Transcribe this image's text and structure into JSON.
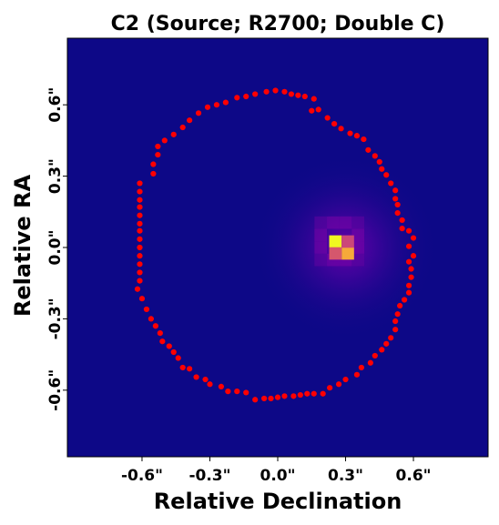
{
  "chart_data": {
    "type": "heatmap",
    "title": "C2 (Source; R2700; Double C)",
    "xlabel": "Relative Declination",
    "ylabel": "Relative RA",
    "xlim": [
      -0.93,
      0.93
    ],
    "ylim": [
      -0.88,
      0.88
    ],
    "x_ticks": [
      {
        "value": -0.6,
        "label": "-0.6\""
      },
      {
        "value": -0.3,
        "label": "-0.3\""
      },
      {
        "value": 0.0,
        "label": "0.0\""
      },
      {
        "value": 0.3,
        "label": "0.3\""
      },
      {
        "value": 0.6,
        "label": "0.6\""
      }
    ],
    "y_ticks": [
      {
        "value": 0.6,
        "label": "0.6\""
      },
      {
        "value": 0.3,
        "label": "0.3\""
      },
      {
        "value": 0.0,
        "label": "0.0\""
      },
      {
        "value": -0.3,
        "label": "-0.3\""
      },
      {
        "value": -0.6,
        "label": "-0.6\""
      }
    ],
    "colormap": "plasma",
    "background_color": "#0d0887",
    "source": {
      "peak_x": 0.3,
      "peak_y": 0.0,
      "halo_sigma": 0.17,
      "bright_pixels": [
        {
          "x": 0.255,
          "y": 0.025,
          "level": 1.0
        },
        {
          "x": 0.31,
          "y": -0.025,
          "level": 0.8
        },
        {
          "x": 0.255,
          "y": -0.025,
          "level": 0.55
        },
        {
          "x": 0.31,
          "y": 0.025,
          "level": 0.5
        }
      ]
    },
    "curve_color": "#ff0000",
    "curve_points": [
      [
        -0.01,
        0.66
      ],
      [
        0.03,
        0.655
      ],
      [
        0.06,
        0.645
      ],
      [
        0.09,
        0.64
      ],
      [
        0.12,
        0.635
      ],
      [
        0.16,
        0.625
      ],
      [
        0.15,
        0.575
      ],
      [
        0.18,
        0.58
      ],
      [
        0.22,
        0.545
      ],
      [
        0.25,
        0.52
      ],
      [
        0.28,
        0.5
      ],
      [
        0.32,
        0.48
      ],
      [
        0.35,
        0.47
      ],
      [
        0.38,
        0.455
      ],
      [
        0.4,
        0.41
      ],
      [
        0.43,
        0.385
      ],
      [
        0.45,
        0.36
      ],
      [
        0.46,
        0.33
      ],
      [
        0.48,
        0.305
      ],
      [
        0.5,
        0.27
      ],
      [
        0.52,
        0.24
      ],
      [
        0.52,
        0.205
      ],
      [
        0.53,
        0.18
      ],
      [
        0.53,
        0.145
      ],
      [
        0.55,
        0.115
      ],
      [
        0.55,
        0.08
      ],
      [
        0.58,
        0.07
      ],
      [
        0.6,
        0.04
      ],
      [
        0.58,
        0.005
      ],
      [
        0.6,
        -0.035
      ],
      [
        0.58,
        -0.06
      ],
      [
        0.59,
        -0.09
      ],
      [
        0.59,
        -0.125
      ],
      [
        0.58,
        -0.16
      ],
      [
        0.58,
        -0.19
      ],
      [
        0.56,
        -0.22
      ],
      [
        0.54,
        -0.245
      ],
      [
        0.53,
        -0.28
      ],
      [
        0.52,
        -0.31
      ],
      [
        0.52,
        -0.345
      ],
      [
        0.5,
        -0.38
      ],
      [
        0.48,
        -0.405
      ],
      [
        0.46,
        -0.43
      ],
      [
        0.43,
        -0.455
      ],
      [
        0.41,
        -0.485
      ],
      [
        0.37,
        -0.505
      ],
      [
        0.35,
        -0.535
      ],
      [
        0.3,
        -0.555
      ],
      [
        0.27,
        -0.575
      ],
      [
        0.23,
        -0.59
      ],
      [
        0.2,
        -0.615
      ],
      [
        0.16,
        -0.615
      ],
      [
        0.13,
        -0.615
      ],
      [
        0.1,
        -0.62
      ],
      [
        0.07,
        -0.625
      ],
      [
        0.03,
        -0.625
      ],
      [
        0.0,
        -0.63
      ],
      [
        -0.03,
        -0.635
      ],
      [
        -0.06,
        -0.635
      ],
      [
        -0.1,
        -0.64
      ],
      [
        -0.14,
        -0.61
      ],
      [
        -0.18,
        -0.605
      ],
      [
        -0.22,
        -0.605
      ],
      [
        -0.25,
        -0.585
      ],
      [
        -0.3,
        -0.575
      ],
      [
        -0.32,
        -0.555
      ],
      [
        -0.36,
        -0.545
      ],
      [
        -0.39,
        -0.51
      ],
      [
        -0.42,
        -0.505
      ],
      [
        -0.44,
        -0.465
      ],
      [
        -0.46,
        -0.44
      ],
      [
        -0.48,
        -0.415
      ],
      [
        -0.51,
        -0.395
      ],
      [
        -0.52,
        -0.36
      ],
      [
        -0.54,
        -0.33
      ],
      [
        -0.56,
        -0.3
      ],
      [
        -0.58,
        -0.26
      ],
      [
        -0.6,
        -0.215
      ],
      [
        -0.62,
        -0.175
      ],
      [
        -0.61,
        -0.14
      ],
      [
        -0.61,
        -0.105
      ],
      [
        -0.61,
        -0.07
      ],
      [
        -0.61,
        -0.035
      ],
      [
        -0.61,
        0.0
      ],
      [
        -0.61,
        0.035
      ],
      [
        -0.61,
        0.07
      ],
      [
        -0.61,
        0.1
      ],
      [
        -0.61,
        0.135
      ],
      [
        -0.61,
        0.17
      ],
      [
        -0.61,
        0.2
      ],
      [
        -0.61,
        0.235
      ],
      [
        -0.61,
        0.27
      ],
      [
        -0.55,
        0.31
      ],
      [
        -0.55,
        0.35
      ],
      [
        -0.53,
        0.39
      ],
      [
        -0.53,
        0.425
      ],
      [
        -0.5,
        0.45
      ],
      [
        -0.46,
        0.475
      ],
      [
        -0.42,
        0.505
      ],
      [
        -0.39,
        0.535
      ],
      [
        -0.35,
        0.565
      ],
      [
        -0.31,
        0.59
      ],
      [
        -0.27,
        0.6
      ],
      [
        -0.23,
        0.61
      ],
      [
        -0.18,
        0.63
      ],
      [
        -0.14,
        0.635
      ],
      [
        -0.1,
        0.645
      ],
      [
        -0.05,
        0.655
      ]
    ]
  }
}
